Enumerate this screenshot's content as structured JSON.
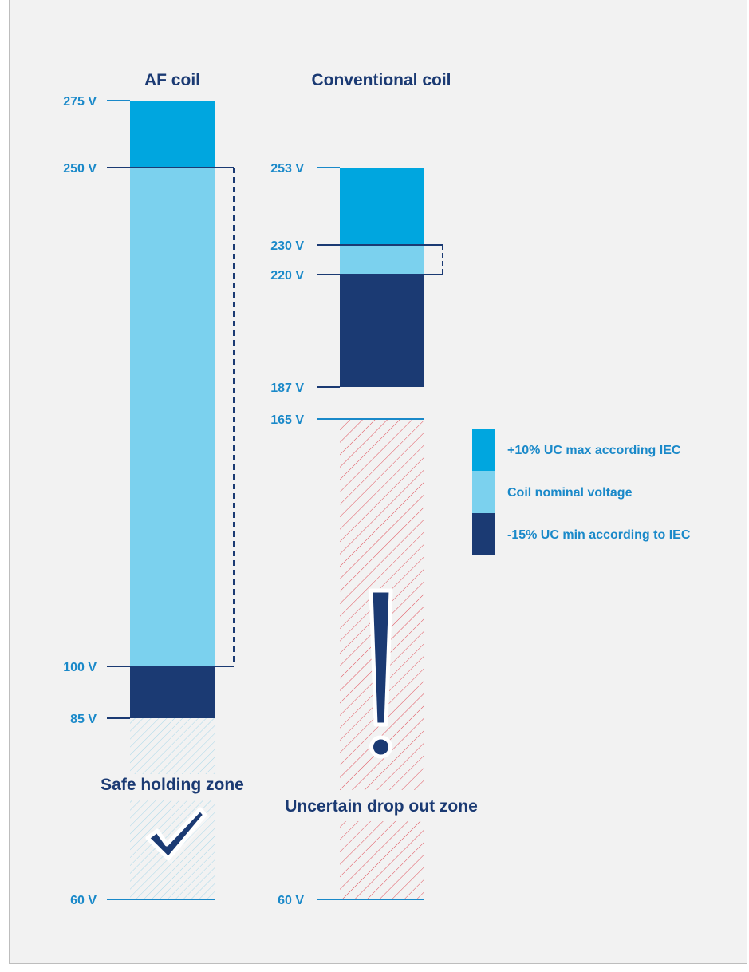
{
  "titles": {
    "af": "AF coil",
    "conventional": "Conventional coil"
  },
  "af_ticks": {
    "v275": "275 V",
    "v250": "250 V",
    "v100": "100 V",
    "v85": "85 V",
    "v60": "60 V"
  },
  "conv_ticks": {
    "v253": "253 V",
    "v230": "230 V",
    "v220": "220 V",
    "v187": "187 V",
    "v165": "165 V",
    "v60": "60 V"
  },
  "legend": {
    "max": "+10% UC max according IEC",
    "nominal": "Coil nominal voltage",
    "min": "-15% UC min according to IEC"
  },
  "zones": {
    "safe": "Safe holding zone",
    "uncertain": "Uncertain drop out zone"
  },
  "colors": {
    "max": "#00a6df",
    "nominal": "#7bd1ee",
    "min": "#1b3a73",
    "tick": "#1a89c9",
    "hatch_safe": "#9ed3e6",
    "hatch_danger": "#e0505a"
  },
  "icons": {
    "safe": "checkmark-icon",
    "uncertain": "exclamation-icon"
  }
}
